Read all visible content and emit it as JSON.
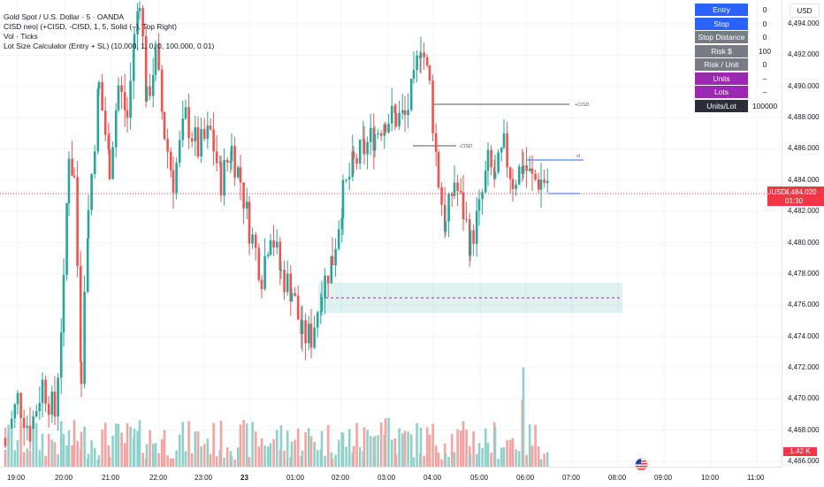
{
  "legend": {
    "line1": "Gold Spot / U.S. Dollar · 5 · OANDA",
    "line2": "CISD neo| (+CISD, -CISD, 1, 5, Solid (–), Top Right)",
    "line3": "Vol · Ticks",
    "line4": "Lot Size Calculator (Entry + SL) (10,000, 1, 0, 0, 100,000, 0.01)"
  },
  "currency_button": "USD",
  "price_axis": [
    "4,494.000",
    "4,492.000",
    "4,490.000",
    "4,488.000",
    "4,486.000",
    "4,484.000",
    "4,482.000",
    "4,480.000",
    "4,478.000",
    "4,476.000",
    "4,474.000",
    "4,472.000",
    "4,470.000",
    "4,468.000",
    "4,466.000"
  ],
  "time_axis": [
    {
      "label": "19:00",
      "bold": false
    },
    {
      "label": "20:00",
      "bold": false
    },
    {
      "label": "21:00",
      "bold": false
    },
    {
      "label": "22:00",
      "bold": false
    },
    {
      "label": "23:00",
      "bold": false
    },
    {
      "label": "23",
      "bold": true
    },
    {
      "label": "01:00",
      "bold": false
    },
    {
      "label": "02:00",
      "bold": false
    },
    {
      "label": "03:00",
      "bold": false
    },
    {
      "label": "04:00",
      "bold": false
    },
    {
      "label": "05:00",
      "bold": false
    },
    {
      "label": "06:00",
      "bold": false
    },
    {
      "label": "07:00",
      "bold": false
    },
    {
      "label": "08:00",
      "bold": false
    },
    {
      "label": "09:00",
      "bold": false
    },
    {
      "label": "10:00",
      "bold": false
    },
    {
      "label": "11:00",
      "bold": false
    }
  ],
  "current_price": {
    "symbol": "XAUUSD",
    "price": "4,484.020",
    "countdown": "01:30"
  },
  "volume_label": "1.42 K",
  "annotations": {
    "plus_cisd": "+CISD",
    "minus_cisd": "-CISD",
    "sl": "sl"
  },
  "panel": [
    {
      "label": "Entry",
      "value": "0",
      "color": "#2962ff"
    },
    {
      "label": "Stop",
      "value": "0",
      "color": "#2962ff"
    },
    {
      "label": "Stop Distance",
      "value": "0",
      "color": "#787b86"
    },
    {
      "label": "Risk $",
      "value": "100",
      "color": "#787b86"
    },
    {
      "label": "Risk / Unit",
      "value": "0",
      "color": "#787b86"
    },
    {
      "label": "Units",
      "value": "–",
      "color": "#9c27b0"
    },
    {
      "label": "Lots",
      "value": "–",
      "color": "#9c27b0"
    },
    {
      "label": "Units/Lot",
      "value": "100000",
      "color": "#2a2e39"
    }
  ],
  "colors": {
    "up": "#26a69a",
    "down": "#ef5350",
    "up_vol": "#8fd1c9",
    "down_vol": "#f4a3a1",
    "grid": "#f0f3fa",
    "box": "#26a69a"
  }
}
